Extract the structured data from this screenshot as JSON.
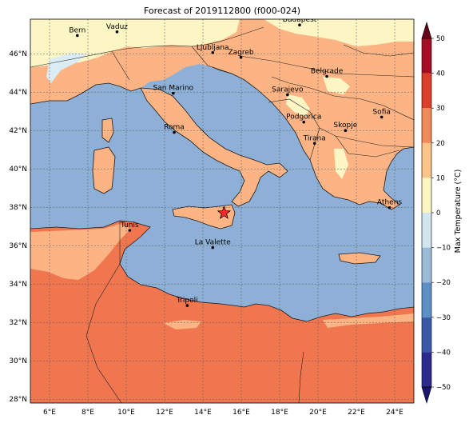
{
  "title": "Forecast of 2019112800 (f000-024)",
  "map": {
    "lon_range": [
      5,
      25
    ],
    "lat_range": [
      27.8,
      47.8
    ],
    "lon_ticks": [
      "6°E",
      "8°E",
      "10°E",
      "12°E",
      "14°E",
      "16°E",
      "18°E",
      "20°E",
      "22°E",
      "24°E"
    ],
    "lat_ticks": [
      "28°N",
      "30°N",
      "32°N",
      "34°N",
      "36°N",
      "38°N",
      "40°N",
      "42°N",
      "44°N",
      "46°N"
    ],
    "gridlines": true,
    "marker": {
      "label": "star",
      "lon": 15.1,
      "lat": 37.7,
      "color": "#ff2a2a"
    },
    "cities": [
      {
        "name": "Bern",
        "lon": 7.45,
        "lat": 46.95
      },
      {
        "name": "Vaduz",
        "lon": 9.52,
        "lat": 47.14
      },
      {
        "name": "Budapest",
        "lon": 19.04,
        "lat": 47.5
      },
      {
        "name": "Ljubljana",
        "lon": 14.51,
        "lat": 46.06
      },
      {
        "name": "Zagreb",
        "lon": 15.98,
        "lat": 45.81
      },
      {
        "name": "Belgrade",
        "lon": 20.46,
        "lat": 44.82
      },
      {
        "name": "San Marino",
        "lon": 12.45,
        "lat": 43.94
      },
      {
        "name": "Sarajevo",
        "lon": 18.41,
        "lat": 43.86
      },
      {
        "name": "Sofia",
        "lon": 23.32,
        "lat": 42.7
      },
      {
        "name": "Podgorica",
        "lon": 19.26,
        "lat": 42.44
      },
      {
        "name": "Skopje",
        "lon": 21.43,
        "lat": 42.0
      },
      {
        "name": "Roma",
        "lon": 12.5,
        "lat": 41.9
      },
      {
        "name": "Tirana",
        "lon": 19.82,
        "lat": 41.33
      },
      {
        "name": "Athens",
        "lon": 23.73,
        "lat": 37.98
      },
      {
        "name": "Tunis",
        "lon": 10.18,
        "lat": 36.8
      },
      {
        "name": "La Valette",
        "lon": 14.51,
        "lat": 35.9
      },
      {
        "name": "Tripoli",
        "lon": 13.18,
        "lat": 32.88
      }
    ]
  },
  "colorbar": {
    "label": "Max Temperature (°C)",
    "min": -50,
    "max": 50,
    "step": 10,
    "tick_labels": [
      "−50",
      "−40",
      "−30",
      "−20",
      "−10",
      "0",
      "10",
      "20",
      "30",
      "40",
      "50"
    ],
    "colors": [
      "#2c2a8f",
      "#3a5aa8",
      "#5e8fc4",
      "#9bbad8",
      "#d2e6f0",
      "#fcf5c4",
      "#fdc48a",
      "#f08a5a",
      "#d8402c",
      "#a30e24"
    ],
    "under_color": "#1a1670",
    "over_color": "#6b0018"
  }
}
